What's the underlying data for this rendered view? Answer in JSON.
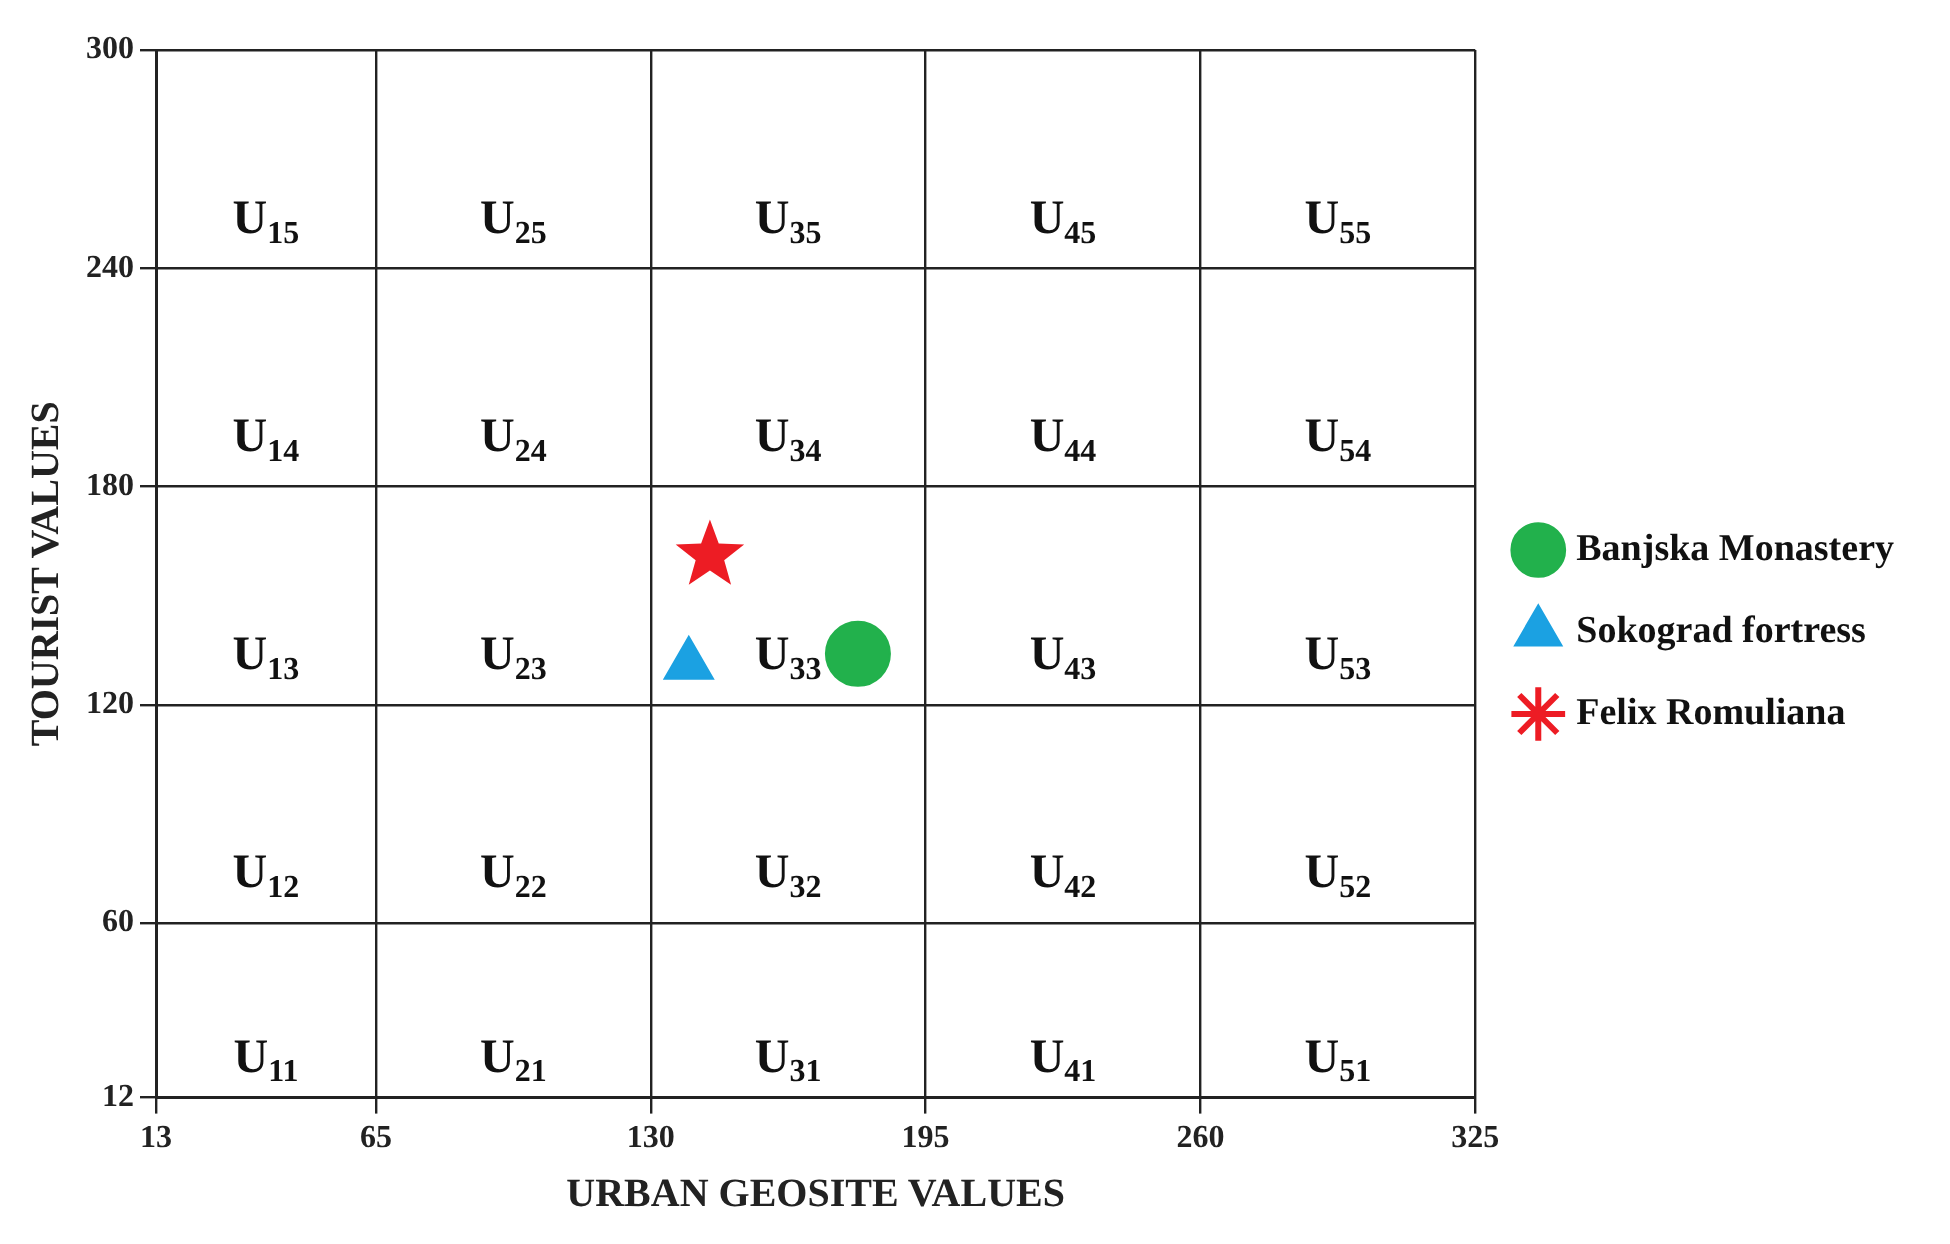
{
  "chart_data": {
    "type": "scatter",
    "xlabel": "URBAN GEOSITE VALUES",
    "ylabel": "TOURIST VALUES",
    "xlim": [
      13,
      325
    ],
    "xticks": [
      13,
      65,
      130,
      195,
      260,
      325
    ],
    "ylim": [
      12,
      300
    ],
    "yticks": [
      12,
      60,
      120,
      180,
      240,
      300
    ],
    "grid": true,
    "legend": "right",
    "series": [
      {
        "name": "Banjska Monastery",
        "color": "#22b14c",
        "marker": "circle",
        "x": [
          179
        ],
        "values": [
          134
        ]
      },
      {
        "name": "Sokograd fortress",
        "color": "#1ba1e2",
        "marker": "triangle",
        "x": [
          139
        ],
        "values": [
          131
        ]
      },
      {
        "name": "Felix Romuliana",
        "color": "#ed1c24",
        "marker": "star",
        "x": [
          144
        ],
        "values": [
          161
        ]
      }
    ],
    "annotations": [
      "U$_{15}$",
      "U$_{25}$",
      "U$_{35}$",
      "U$_{45}$",
      "U$_{55}$",
      "U$_{14}$",
      "U$_{24}$",
      "U$_{34}$",
      "U$_{44}$",
      "U$_{54}$",
      "U$_{13}$",
      "U$_{23}$",
      "U$_{33}$",
      "U$_{43}$",
      "U$_{53}$",
      "U$_{12}$",
      "U$_{22}$",
      "U$_{32}$",
      "U$_{42}$",
      "U$_{52}$",
      "U$_{11}$",
      "U$_{21}$",
      "U$_{31}$",
      "U$_{41}$",
      "U$_{51}$"
    ]
  }
}
